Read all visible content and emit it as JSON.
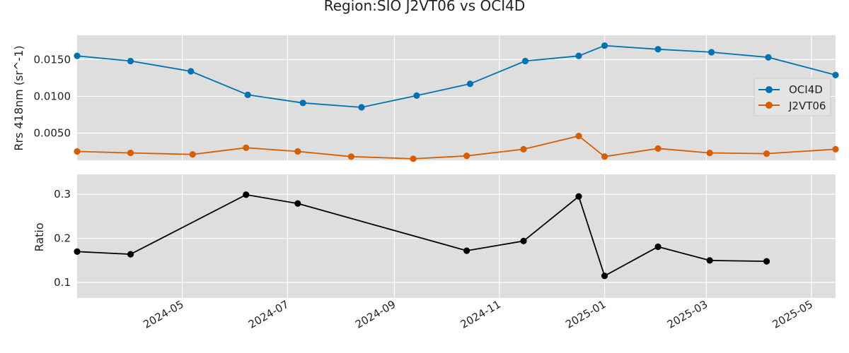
{
  "chart_data": {
    "type": "line",
    "title": "Region:SIO J2VT06 vs OCI4D",
    "x_tick_labels": [
      "2024-05",
      "2024-07",
      "2024-09",
      "2024-11",
      "2025-01",
      "2025-03",
      "2025-05"
    ],
    "x_tick_dates": [
      "2024-05-01",
      "2024-07-01",
      "2024-09-01",
      "2024-11-01",
      "2025-01-01",
      "2025-03-01",
      "2025-05-01"
    ],
    "xlim": [
      "2024-03-01",
      "2025-05-15"
    ],
    "grid": true,
    "panels": [
      {
        "ylabel": "Rrs 418nm (sr^-1)",
        "ylim": [
          0.0013,
          0.0183
        ],
        "y_ticks": [
          0.005,
          0.01,
          0.015
        ],
        "y_tick_labels": [
          "0.0050",
          "0.0100",
          "0.0150"
        ],
        "legend": "right",
        "series": [
          {
            "name": "OCI4D",
            "color": "#0072b2",
            "x": [
              "2024-03-01",
              "2024-04-01",
              "2024-05-06",
              "2024-06-08",
              "2024-07-10",
              "2024-08-13",
              "2024-09-14",
              "2024-10-15",
              "2024-11-16",
              "2024-12-17",
              "2025-01-01",
              "2025-02-01",
              "2025-03-04",
              "2025-04-06",
              "2025-05-15"
            ],
            "values": [
              0.0155,
              0.0148,
              0.0134,
              0.0102,
              0.0091,
              0.0085,
              0.0101,
              0.0117,
              0.0148,
              0.0155,
              0.0169,
              0.0164,
              0.016,
              0.0153,
              0.0129
            ]
          },
          {
            "name": "J2VT06",
            "color": "#d55e00",
            "x": [
              "2024-03-01",
              "2024-04-01",
              "2024-05-07",
              "2024-06-07",
              "2024-07-07",
              "2024-08-07",
              "2024-09-12",
              "2024-10-13",
              "2024-11-15",
              "2024-12-17",
              "2025-01-01",
              "2025-02-01",
              "2025-03-03",
              "2025-04-05",
              "2025-05-15"
            ],
            "values": [
              0.0025,
              0.0023,
              0.0021,
              0.003,
              0.0025,
              0.0018,
              0.0015,
              0.0019,
              0.0028,
              0.0046,
              0.0018,
              0.0029,
              0.0023,
              0.0022,
              0.0028
            ]
          }
        ]
      },
      {
        "ylabel": "Ratio",
        "ylim": [
          0.065,
          0.345
        ],
        "y_ticks": [
          0.1,
          0.2,
          0.3
        ],
        "y_tick_labels": [
          "0.1",
          "0.2",
          "0.3"
        ],
        "series": [
          {
            "name": "",
            "color": "#000000",
            "x": [
              "2024-03-01",
              "2024-04-01",
              "2024-06-07",
              "2024-07-07",
              "2024-10-13",
              "2024-11-15",
              "2024-12-17",
              "2025-01-01",
              "2025-02-01",
              "2025-03-03",
              "2025-04-05"
            ],
            "values": [
              0.17,
              0.164,
              0.299,
              0.279,
              0.172,
              0.194,
              0.295,
              0.115,
              0.181,
              0.15,
              0.148
            ]
          }
        ]
      }
    ]
  }
}
